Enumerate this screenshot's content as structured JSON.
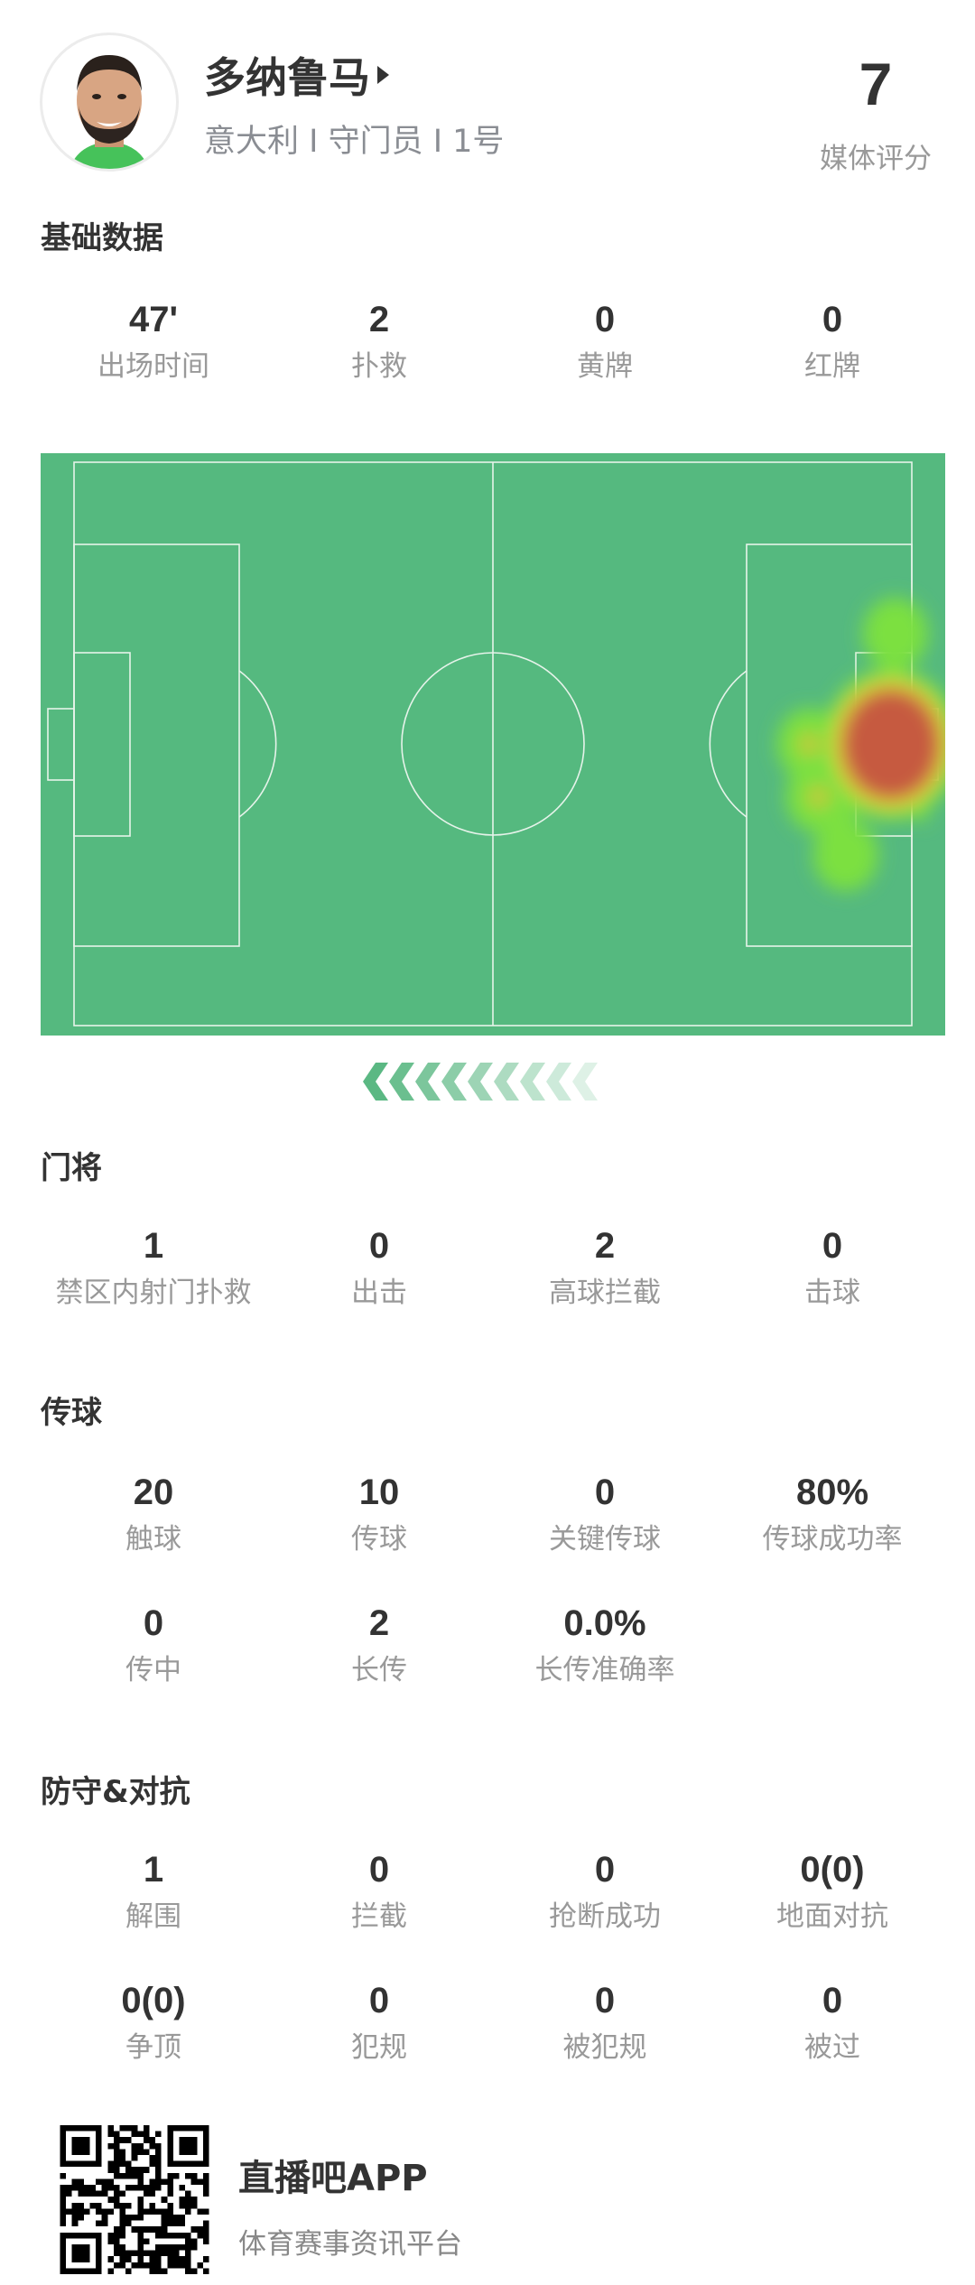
{
  "player": {
    "name": "多纳鲁马",
    "subtitle": "意大利 I 守门员 I 1号",
    "rating": "7",
    "rating_label": "媒体评分"
  },
  "basic": {
    "title": "基础数据",
    "items": [
      {
        "value": "47'",
        "label": "出场时间"
      },
      {
        "value": "2",
        "label": "扑救"
      },
      {
        "value": "0",
        "label": "黄牌"
      },
      {
        "value": "0",
        "label": "红牌"
      }
    ]
  },
  "heatmap": {
    "pitch_color": "#55b97f",
    "hotspots": [
      {
        "x": 94,
        "y": 50,
        "intensity": 1.0
      },
      {
        "x": 94.5,
        "y": 31,
        "intensity": 0.35
      },
      {
        "x": 85,
        "y": 50,
        "intensity": 0.5
      },
      {
        "x": 86,
        "y": 59,
        "intensity": 0.5
      },
      {
        "x": 89,
        "y": 69,
        "intensity": 0.35
      }
    ],
    "direction": "left"
  },
  "goalkeeping": {
    "title": "门将",
    "items": [
      {
        "value": "1",
        "label": "禁区内射门扑救"
      },
      {
        "value": "0",
        "label": "出击"
      },
      {
        "value": "2",
        "label": "高球拦截"
      },
      {
        "value": "0",
        "label": "击球"
      }
    ]
  },
  "passing": {
    "title": "传球",
    "items": [
      {
        "value": "20",
        "label": "触球"
      },
      {
        "value": "10",
        "label": "传球"
      },
      {
        "value": "0",
        "label": "关键传球"
      },
      {
        "value": "80%",
        "label": "传球成功率"
      },
      {
        "value": "0",
        "label": "传中"
      },
      {
        "value": "2",
        "label": "长传"
      },
      {
        "value": "0.0%",
        "label": "长传准确率"
      }
    ]
  },
  "defense": {
    "title": "防守&对抗",
    "items": [
      {
        "value": "1",
        "label": "解围"
      },
      {
        "value": "0",
        "label": "拦截"
      },
      {
        "value": "0",
        "label": "抢断成功"
      },
      {
        "value": "0(0)",
        "label": "地面对抗"
      },
      {
        "value": "0(0)",
        "label": "争顶"
      },
      {
        "value": "0",
        "label": "犯规"
      },
      {
        "value": "0",
        "label": "被犯规"
      },
      {
        "value": "0",
        "label": "被过"
      }
    ]
  },
  "footer": {
    "app_name": "直播吧APP",
    "slogan": "体育赛事资讯平台"
  }
}
